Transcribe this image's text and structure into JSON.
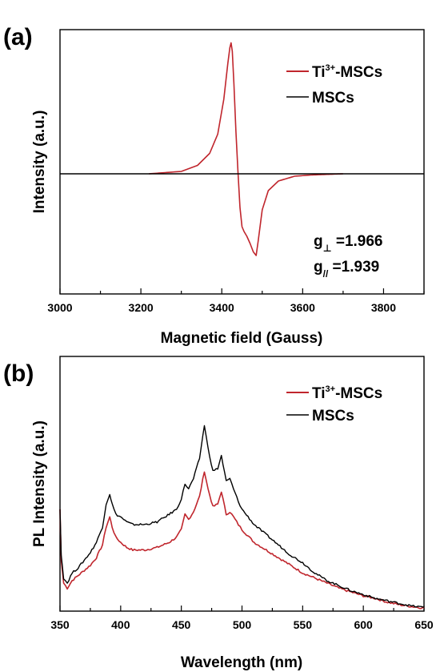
{
  "chart_data": [
    {
      "panel": "(a)",
      "type": "line",
      "xlabel": "Magnetic field (Gauss)",
      "ylabel": "Intensity (a.u.)",
      "xlim": [
        3000,
        3900
      ],
      "ylim": [
        -1.0,
        1.2
      ],
      "x_ticks": [
        "3000",
        "3200",
        "3400",
        "3600",
        "3800"
      ],
      "x_tick_values": [
        3000,
        3200,
        3400,
        3600,
        3800
      ],
      "grid": false,
      "legend_position": "top-right",
      "series": [
        {
          "name": "Ti3+-MSCs",
          "name_base": "Ti",
          "name_sup": "3+",
          "name_rest": "-MSCs",
          "color": "#c0262d",
          "x": [
            3220,
            3300,
            3340,
            3370,
            3390,
            3405,
            3415,
            3420,
            3423,
            3426,
            3430,
            3435,
            3440,
            3445,
            3450,
            3455,
            3462,
            3470,
            3478,
            3485,
            3490,
            3500,
            3515,
            3540,
            3580,
            3620,
            3700
          ],
          "y": [
            0.0,
            0.02,
            0.07,
            0.17,
            0.33,
            0.62,
            0.92,
            1.05,
            1.09,
            1.02,
            0.75,
            0.35,
            0.02,
            -0.28,
            -0.44,
            -0.48,
            -0.52,
            -0.58,
            -0.65,
            -0.68,
            -0.56,
            -0.3,
            -0.14,
            -0.06,
            -0.02,
            -0.01,
            0.0
          ]
        },
        {
          "name": "MSCs",
          "color": "#000000",
          "x": [
            3000,
            3900
          ],
          "y": [
            0.0,
            0.0
          ]
        }
      ],
      "annotations": [
        {
          "base": "g",
          "sub": "⊥",
          "text": " =1.966"
        },
        {
          "base": "g",
          "sub": "//",
          "text": " =1.939"
        }
      ]
    },
    {
      "panel": "(b)",
      "type": "line",
      "xlabel": "Wavelength (nm)",
      "ylabel": "PL Intensity (a.u.)",
      "xlim": [
        350,
        650
      ],
      "ylim": [
        0,
        100
      ],
      "x_ticks": [
        "350",
        "400",
        "450",
        "500",
        "550",
        "600",
        "650"
      ],
      "x_tick_values": [
        350,
        400,
        450,
        500,
        550,
        600,
        650
      ],
      "grid": false,
      "legend_position": "top-right",
      "series": [
        {
          "name": "Ti3+-MSCs",
          "name_base": "Ti",
          "name_sup": "3+",
          "name_rest": "-MSCs",
          "color": "#c0262d",
          "x": [
            350,
            351,
            353,
            356,
            360,
            365,
            370,
            375,
            380,
            385,
            388,
            391,
            393,
            396,
            400,
            405,
            410,
            420,
            430,
            440,
            446,
            450,
            453,
            456,
            460,
            465,
            469,
            472,
            476,
            480,
            483,
            487,
            490,
            493,
            497,
            500,
            510,
            520,
            530,
            540,
            550,
            560,
            570,
            580,
            590,
            600,
            610,
            620,
            630,
            640,
            650
          ],
          "y": [
            40,
            20,
            11,
            9,
            12,
            14,
            16,
            18,
            21,
            26,
            33,
            37,
            33,
            29,
            27,
            25,
            24,
            24,
            25,
            27,
            29,
            32,
            38,
            36,
            39,
            45,
            55,
            48,
            41,
            42,
            47,
            38,
            39,
            37,
            34,
            32,
            27,
            24,
            21,
            18,
            15,
            13,
            11,
            9,
            7.5,
            6,
            5,
            3.5,
            2.5,
            1.8,
            1.2
          ]
        },
        {
          "name": "MSCs",
          "color": "#000000",
          "x": [
            350,
            351,
            353,
            356,
            360,
            365,
            370,
            375,
            380,
            385,
            388,
            391,
            393,
            396,
            400,
            405,
            410,
            420,
            430,
            440,
            446,
            450,
            453,
            456,
            460,
            465,
            469,
            472,
            476,
            480,
            483,
            487,
            490,
            493,
            497,
            500,
            510,
            520,
            530,
            540,
            550,
            560,
            570,
            580,
            590,
            600,
            610,
            620,
            630,
            640,
            650
          ],
          "y": [
            40,
            22,
            13,
            11,
            15,
            17,
            20,
            23,
            27,
            33,
            42,
            46,
            42,
            38,
            37,
            35,
            34,
            34,
            35,
            38,
            40,
            44,
            50,
            48,
            52,
            60,
            73,
            64,
            55,
            56,
            61,
            51,
            52,
            48,
            43,
            40,
            34,
            30,
            26,
            22,
            19,
            15,
            12,
            10,
            8,
            6.5,
            5,
            4,
            3,
            2,
            1.5
          ]
        }
      ]
    }
  ]
}
